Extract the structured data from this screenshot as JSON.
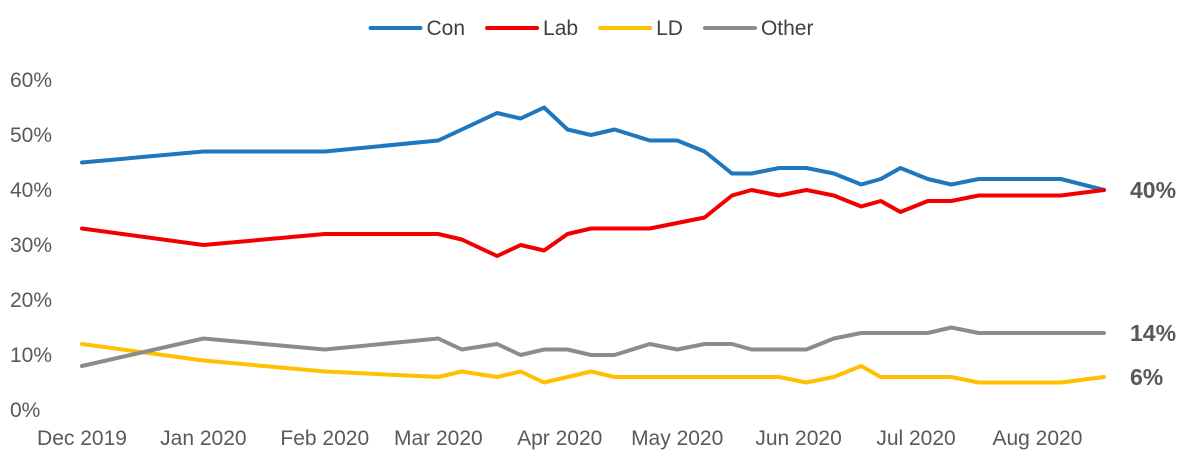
{
  "chart_data": {
    "type": "line",
    "title": "",
    "xlabel": "",
    "ylabel": "",
    "ylim": [
      0,
      60
    ],
    "y_ticks": [
      "0%",
      "10%",
      "20%",
      "30%",
      "40%",
      "50%",
      "60%"
    ],
    "x_ticks": [
      "Dec 2019",
      "Jan 2020",
      "Feb 2020",
      "Mar 2020",
      "Apr 2020",
      "May 2020",
      "Jun 2020",
      "Jul 2020",
      "Aug 2020"
    ],
    "grid": false,
    "legend_position": "top",
    "x": [
      "2019-12-01",
      "2020-01-01",
      "2020-02-01",
      "2020-03-01",
      "2020-03-07",
      "2020-03-16",
      "2020-03-22",
      "2020-03-28",
      "2020-04-03",
      "2020-04-09",
      "2020-04-15",
      "2020-04-24",
      "2020-05-01",
      "2020-05-08",
      "2020-05-15",
      "2020-05-20",
      "2020-05-27",
      "2020-06-03",
      "2020-06-10",
      "2020-06-17",
      "2020-06-22",
      "2020-06-27",
      "2020-07-04",
      "2020-07-10",
      "2020-07-17",
      "2020-07-24",
      "2020-08-07",
      "2020-08-18"
    ],
    "series": [
      {
        "name": "Con",
        "color": "#1F77BE",
        "values": [
          45,
          47,
          47,
          49,
          51,
          54,
          53,
          55,
          51,
          50,
          51,
          49,
          49,
          47,
          43,
          43,
          44,
          44,
          43,
          41,
          42,
          44,
          42,
          41,
          42,
          42,
          42,
          40
        ]
      },
      {
        "name": "Lab",
        "color": "#F20000",
        "values": [
          33,
          30,
          32,
          32,
          31,
          28,
          30,
          29,
          32,
          33,
          33,
          33,
          34,
          35,
          39,
          40,
          39,
          40,
          39,
          37,
          38,
          36,
          38,
          38,
          39,
          39,
          39,
          40
        ]
      },
      {
        "name": "LD",
        "color": "#FFC000",
        "values": [
          12,
          9,
          7,
          6,
          7,
          6,
          7,
          5,
          6,
          7,
          6,
          6,
          6,
          6,
          6,
          6,
          6,
          5,
          6,
          8,
          6,
          6,
          6,
          6,
          5,
          5,
          5,
          6
        ]
      },
      {
        "name": "Other",
        "color": "#8C8C8C",
        "values": [
          8,
          13,
          11,
          13,
          11,
          12,
          10,
          11,
          11,
          10,
          10,
          12,
          11,
          12,
          12,
          11,
          11,
          11,
          13,
          14,
          14,
          14,
          14,
          15,
          14,
          14,
          14,
          14
        ]
      }
    ],
    "end_labels": [
      {
        "series": "Con",
        "text": "40%",
        "value": 40
      },
      {
        "series": "Other",
        "text": "14%",
        "value": 14
      },
      {
        "series": "LD",
        "text": "6%",
        "value": 6
      }
    ]
  }
}
